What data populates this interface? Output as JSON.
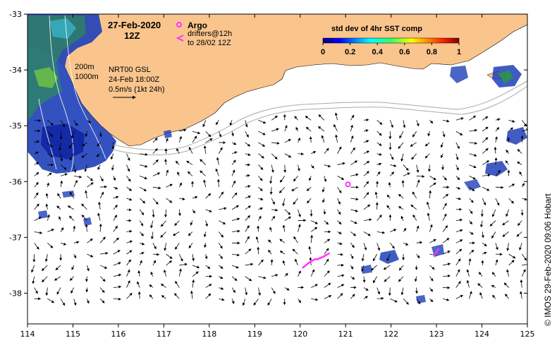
{
  "map": {
    "date": "27-Feb-2020",
    "hour": "12Z",
    "argo_label": "Argo",
    "drifters_line1": "drifters@12h",
    "drifters_line2": "to 28/02 12Z",
    "legend_title": "std dev of 4hr SST comp",
    "legend_ticks": [
      "0",
      "0.2",
      "0.4",
      "0.6",
      "0.8",
      "1"
    ],
    "isobath_200": "200m",
    "isobath_1000": "1000m",
    "product": "NRT00 GSL",
    "product_time": "24-Feb 18:00Z",
    "scale_text": "0.5m/s (1kt 24h)",
    "credit": "© IMOS 29-Feb-2020 09:06 Hobart",
    "x_ticks": [
      "114",
      "115",
      "116",
      "117",
      "118",
      "119",
      "120",
      "121",
      "122",
      "123",
      "124",
      "125"
    ],
    "y_ticks": [
      "-33",
      "-34",
      "-35",
      "-36",
      "-37",
      "-38"
    ],
    "colors": {
      "land": "#f9c58d",
      "argo": "#ff33ff",
      "drifter": "#ff33ff",
      "isobath": "#aaaaaa",
      "arrow": "#000000"
    },
    "argo_position": {
      "lon": 121.05,
      "lat": -36.05
    },
    "drifters": [
      {
        "lon": [
          120.05,
          120.2,
          120.35
        ],
        "lat": [
          -37.55,
          -37.45,
          -37.38
        ]
      },
      {
        "lon": [
          120.35,
          120.5,
          120.65
        ],
        "lat": [
          -37.4,
          -37.35,
          -37.28
        ]
      },
      {
        "lon": [
          122.95,
          123.0,
          123.05
        ],
        "lat": [
          -37.35,
          -37.25,
          -37.2
        ]
      }
    ]
  }
}
